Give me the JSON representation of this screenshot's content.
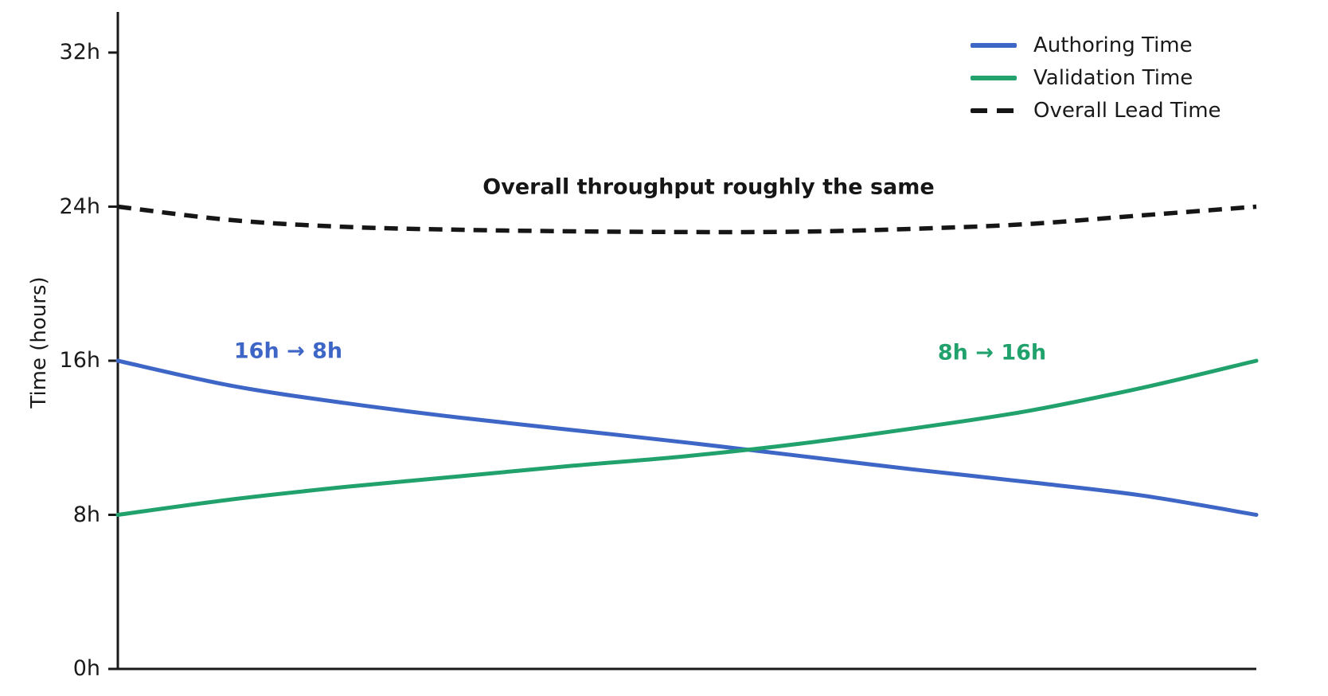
{
  "chart_data": {
    "type": "line",
    "title": "",
    "xlabel": "",
    "ylabel": "Time (hours)",
    "ylim": [
      0,
      32
    ],
    "grid": false,
    "legend_position": "upper right",
    "x_axis_ticks_visible": false,
    "yticks": [
      {
        "value": 0,
        "label": "0h"
      },
      {
        "value": 8,
        "label": "8h"
      },
      {
        "value": 16,
        "label": "16h"
      },
      {
        "value": 24,
        "label": "24h"
      },
      {
        "value": 32,
        "label": "32h"
      }
    ],
    "x_normalized": [
      0,
      0.1,
      0.2,
      0.3,
      0.4,
      0.5,
      0.6,
      0.7,
      0.8,
      0.9,
      1
    ],
    "series": [
      {
        "name": "Overall Lead Time",
        "color": "#161616",
        "dash": true,
        "values": [
          24,
          23.3,
          22.95,
          22.8,
          22.72,
          22.68,
          22.7,
          22.85,
          23.1,
          23.55,
          24
        ]
      },
      {
        "name": "Authoring Time",
        "color": "#3e66c6",
        "dash": false,
        "values": [
          16,
          14.7,
          13.8,
          13.05,
          12.4,
          11.75,
          11.05,
          10.35,
          9.7,
          9.0,
          8
        ]
      },
      {
        "name": "Validation Time",
        "color": "#21a26d",
        "dash": false,
        "values": [
          8,
          8.8,
          9.45,
          10.0,
          10.55,
          11.05,
          11.7,
          12.5,
          13.4,
          14.6,
          16
        ]
      }
    ],
    "annotations": [
      {
        "text": "Overall throughput roughly the same",
        "color": "#161616"
      },
      {
        "text": "16h → 8h",
        "color": "#3e66c6"
      },
      {
        "text": "8h → 16h",
        "color": "#21a26d"
      }
    ]
  },
  "axis": {
    "ylabel": "Time (hours)",
    "spine_color": "#1a1a1a"
  },
  "legend": {
    "items": [
      {
        "label": "Authoring Time",
        "color": "#3e66c6",
        "style": "solid"
      },
      {
        "label": "Validation Time",
        "color": "#21a26d",
        "style": "solid"
      },
      {
        "label": "Overall Lead Time",
        "color": "#161616",
        "style": "dashed"
      }
    ]
  }
}
